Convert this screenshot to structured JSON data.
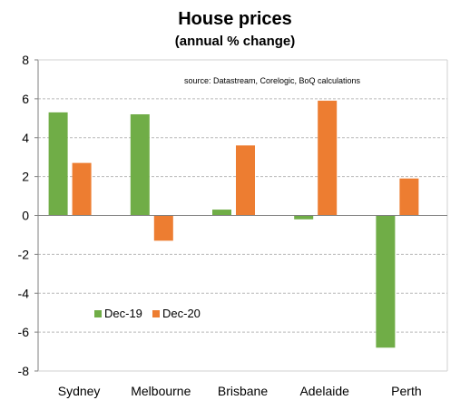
{
  "chart_data": {
    "type": "bar",
    "title": "House prices",
    "subtitle": "(annual % change)",
    "annotation": "source:  Datastream, Corelogic, BoQ calculations",
    "categories": [
      "Sydney",
      "Melbourne",
      "Brisbane",
      "Adelaide",
      "Perth"
    ],
    "series": [
      {
        "name": "Dec-19",
        "color": "#70AD47",
        "values": [
          5.3,
          5.2,
          0.3,
          -0.2,
          -6.8
        ]
      },
      {
        "name": "Dec-20",
        "color": "#ED7D31",
        "values": [
          2.7,
          -1.3,
          3.6,
          5.9,
          1.9
        ]
      }
    ],
    "ylim": [
      -8,
      8
    ],
    "yticks": [
      -8,
      -6,
      -4,
      -2,
      0,
      2,
      4,
      6,
      8
    ],
    "grid": true,
    "legend_position": "bottom-left"
  }
}
